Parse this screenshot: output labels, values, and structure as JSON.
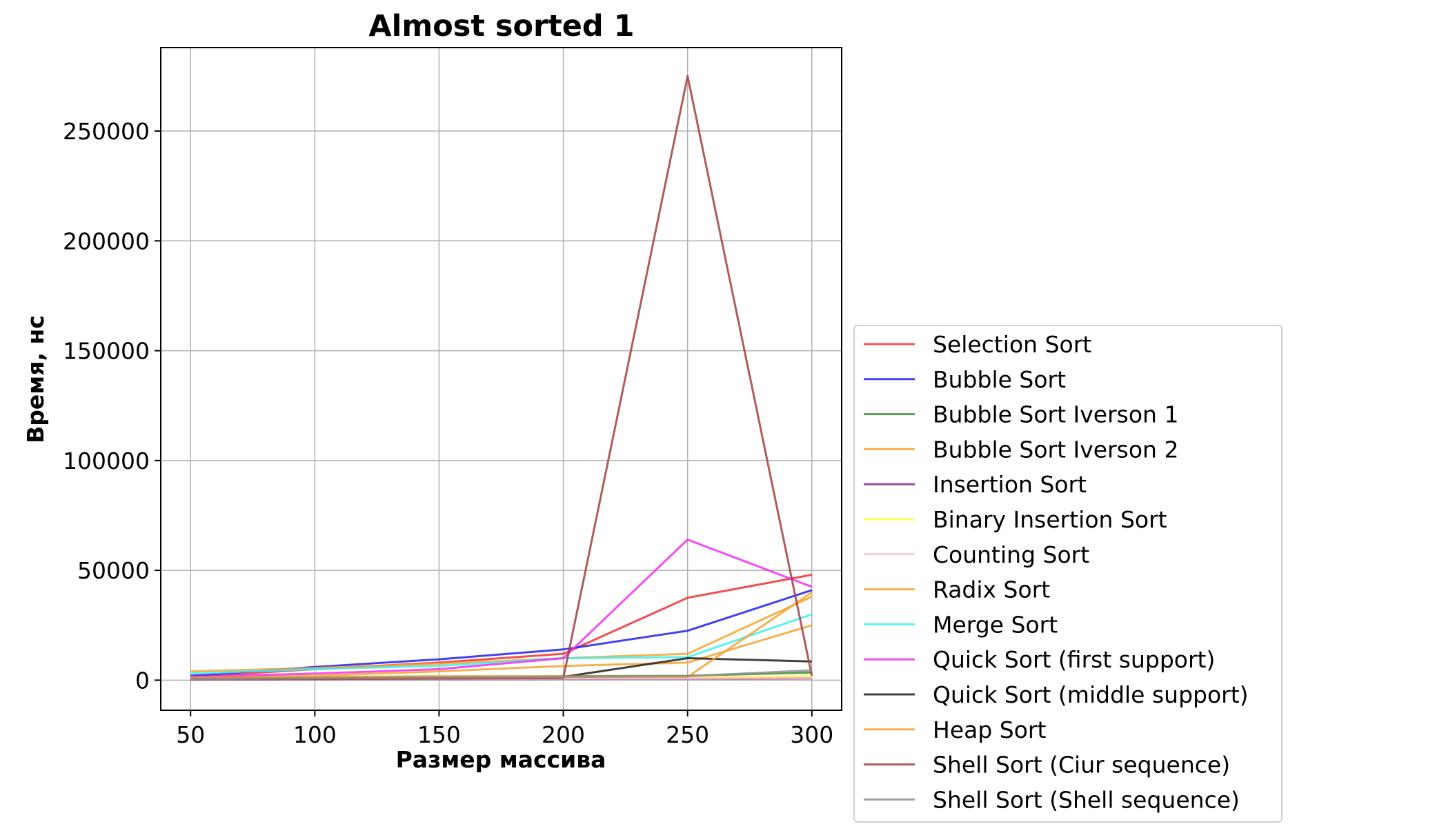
{
  "chart_data": {
    "type": "line",
    "title": "Almost sorted 1",
    "xlabel": "Размер массива",
    "ylabel": "Время, нс",
    "x": [
      50,
      100,
      150,
      200,
      250,
      300
    ],
    "xticks": [
      50,
      100,
      150,
      200,
      250,
      300
    ],
    "xtick_labels": [
      "50",
      "100",
      "150",
      "200",
      "250",
      "300"
    ],
    "xlim": [
      38,
      312
    ],
    "yticks": [
      0,
      50000,
      100000,
      150000,
      200000,
      250000
    ],
    "ytick_labels": [
      "0",
      "50000",
      "100000",
      "150000",
      "200000",
      "250000"
    ],
    "ylim": [
      -13700,
      288000
    ],
    "grid": true,
    "legend_position": "right, outside plot area",
    "series": [
      {
        "name": "Selection Sort",
        "color": "#f03030",
        "values": [
          1500,
          5000,
          8000,
          12000,
          37500,
          48000
        ]
      },
      {
        "name": "Bubble Sort",
        "color": "#2020f0",
        "values": [
          2000,
          6000,
          9500,
          14000,
          22500,
          41000
        ]
      },
      {
        "name": "Bubble Sort Iverson 1",
        "color": "#3c8c3c",
        "values": [
          1000,
          1200,
          1500,
          1800,
          2000,
          3500
        ]
      },
      {
        "name": "Bubble Sort Iverson 2",
        "color": "#f5a330",
        "values": [
          1500,
          2000,
          4000,
          6500,
          8000,
          25000
        ]
      },
      {
        "name": "Insertion Sort",
        "color": "#8c2c8c",
        "values": [
          300,
          400,
          500,
          600,
          700,
          800
        ]
      },
      {
        "name": "Binary Insertion Sort",
        "color": "#ffff30",
        "values": [
          500,
          700,
          900,
          1100,
          1300,
          1800
        ]
      },
      {
        "name": "Counting Sort",
        "color": "#ffc0cb",
        "values": [
          400,
          500,
          600,
          700,
          800,
          1000
        ]
      },
      {
        "name": "Radix Sort",
        "color": "#f5a330",
        "values": [
          4000,
          5500,
          7500,
          10000,
          12000,
          38000
        ]
      },
      {
        "name": "Merge Sort",
        "color": "#40f0f0",
        "values": [
          3000,
          5000,
          6500,
          10000,
          10500,
          30000
        ]
      },
      {
        "name": "Quick Sort (first support)",
        "color": "#f030f0",
        "values": [
          1500,
          3000,
          5000,
          10000,
          64000,
          42500
        ]
      },
      {
        "name": "Quick Sort (middle support)",
        "color": "#202020",
        "values": [
          800,
          1000,
          1200,
          1500,
          10000,
          8500
        ]
      },
      {
        "name": "Heap Sort",
        "color": "#f5a330",
        "values": [
          1000,
          1500,
          1800,
          1700,
          1500,
          40000
        ]
      },
      {
        "name": "Shell Sort (Ciur sequence)",
        "color": "#a04040",
        "values": [
          300,
          500,
          700,
          1000,
          275000,
          2000
        ]
      },
      {
        "name": "Shell Sort (Shell sequence)",
        "color": "#909090",
        "values": [
          600,
          900,
          1200,
          1500,
          1800,
          4500
        ]
      }
    ]
  }
}
